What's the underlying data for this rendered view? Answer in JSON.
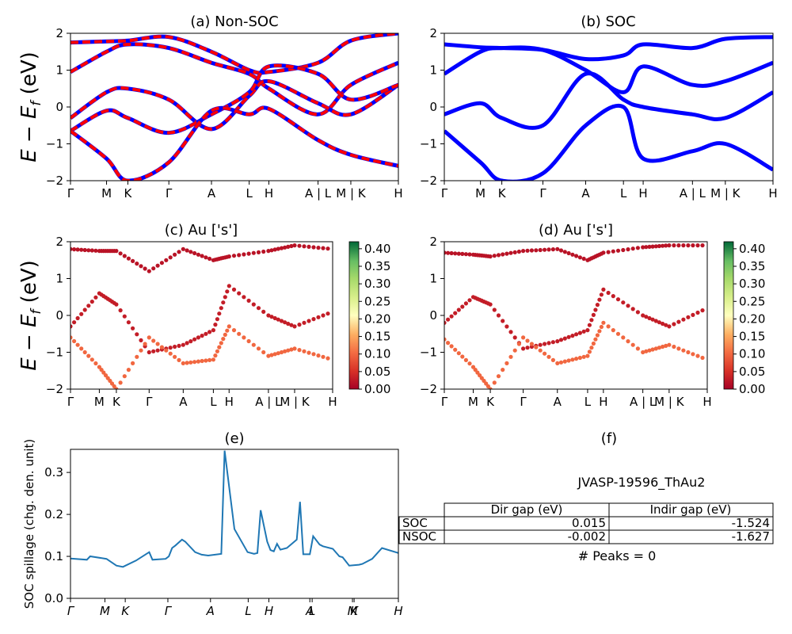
{
  "panels": {
    "a": {
      "title": "(a) Non-SOC",
      "ylabel": "E − E_f (eV)",
      "ylim": [
        -2,
        2
      ],
      "yticks": [
        "2",
        "1",
        "0",
        "−1",
        "−2"
      ],
      "kticks": [
        "Γ",
        "M",
        "K",
        "Γ",
        "A",
        "L",
        "H",
        "A | L",
        "M | K",
        "H"
      ],
      "colors": [
        "#0000ff",
        "#ff0000"
      ]
    },
    "b": {
      "title": "(b) SOC",
      "ylim": [
        -2,
        2
      ],
      "yticks": [
        "2",
        "1",
        "0",
        "−1",
        "−2"
      ],
      "kticks": [
        "Γ",
        "M",
        "K",
        "Γ",
        "A",
        "L",
        "H",
        "A | L",
        "M | K",
        "H"
      ],
      "color": "#0000ff"
    },
    "c": {
      "title": "(c)  Au ['s']",
      "ylabel": "E − E_f (eV)",
      "ylim": [
        -2,
        2
      ],
      "yticks": [
        "2",
        "1",
        "0",
        "−1",
        "−2"
      ],
      "kticks": [
        "Γ",
        "M",
        "K",
        "Γ",
        "A",
        "L",
        "H",
        "A | L",
        "M | K",
        "H"
      ],
      "colorbar_ticks": [
        "0.40",
        "0.35",
        "0.30",
        "0.25",
        "0.20",
        "0.15",
        "0.10",
        "0.05",
        "0.00"
      ]
    },
    "d": {
      "title": "(d) Au ['s']",
      "ylim": [
        -2,
        2
      ],
      "yticks": [
        "2",
        "1",
        "0",
        "−1",
        "−2"
      ],
      "kticks": [
        "Γ",
        "M",
        "K",
        "Γ",
        "A",
        "L",
        "H",
        "A | L",
        "M | K",
        "H"
      ],
      "colorbar_ticks": [
        "0.40",
        "0.35",
        "0.30",
        "0.25",
        "0.20",
        "0.15",
        "0.10",
        "0.05",
        "0.00"
      ]
    },
    "e": {
      "title": "(e)",
      "ylabel": "SOC spillage (chg. den. unit)",
      "yticks": [
        "0.3",
        "0.2",
        "0.1",
        "0.0"
      ],
      "kticks": [
        "Γ",
        "M",
        "K",
        "Γ",
        "A",
        "L",
        "H",
        "A",
        "L",
        "M",
        "K",
        "H"
      ]
    },
    "f": {
      "title": "(f)",
      "material": "JVASP-19596_ThAu2",
      "table": {
        "headers": [
          "",
          "Dir gap (eV)",
          "Indir gap (eV)"
        ],
        "rows": [
          [
            "SOC",
            "0.015",
            "-1.524"
          ],
          [
            "NSOC",
            "-0.002",
            "-1.627"
          ]
        ]
      },
      "peaks": "# Peaks = 0"
    }
  },
  "chart_data": [
    {
      "type": "line",
      "title": "(a) Non-SOC",
      "xlabel": "",
      "ylabel": "E − E_f (eV)",
      "ylim": [
        -2,
        2
      ],
      "x_ticks": [
        "Γ",
        "M",
        "K",
        "Γ",
        "A",
        "L",
        "H",
        "A | L",
        "M | K",
        "H"
      ],
      "series": [
        {
          "values": [
            1.75,
            1.78,
            1.8,
            1.9,
            1.5,
            1.0,
            0.95,
            1.2,
            1.8,
            2.0
          ]
        },
        {
          "values": [
            0.95,
            1.5,
            1.7,
            1.6,
            1.2,
            0.9,
            0.5,
            -0.2,
            0.6,
            1.2
          ]
        },
        {
          "values": [
            -0.3,
            0.4,
            0.5,
            0.2,
            -0.6,
            0.3,
            0.7,
            0.1,
            -0.2,
            0.6
          ]
        },
        {
          "values": [
            -0.65,
            -0.1,
            -0.3,
            -0.7,
            -0.2,
            0.4,
            1.1,
            0.9,
            0.2,
            0.6
          ]
        },
        {
          "values": [
            -0.65,
            -1.4,
            -2.0,
            -1.5,
            -0.1,
            -0.2,
            -0.05,
            -0.9,
            -1.3,
            -1.6
          ]
        }
      ]
    },
    {
      "type": "line",
      "title": "(b) SOC",
      "ylim": [
        -2,
        2
      ],
      "x_ticks": [
        "Γ",
        "M",
        "K",
        "Γ",
        "A",
        "L",
        "H",
        "A | L",
        "M | K",
        "H"
      ],
      "series": [
        {
          "values": [
            1.7,
            1.62,
            1.6,
            1.55,
            1.3,
            1.4,
            1.7,
            1.6,
            1.85,
            1.9
          ]
        },
        {
          "values": [
            0.9,
            1.5,
            1.6,
            1.55,
            1.0,
            0.4,
            1.1,
            0.6,
            0.7,
            1.2
          ]
        },
        {
          "values": [
            -0.2,
            0.1,
            -0.3,
            -0.5,
            0.9,
            0.2,
            0.0,
            -0.2,
            -0.3,
            0.4
          ]
        },
        {
          "values": [
            -0.65,
            -1.5,
            -2.0,
            -1.8,
            -0.5,
            0.0,
            -1.4,
            -1.2,
            -1.0,
            -1.7
          ]
        }
      ]
    },
    {
      "type": "scatter",
      "title": "(c)  Au ['s']",
      "ylim": [
        -2,
        2
      ],
      "colorbar_range": [
        0,
        0.42
      ],
      "x_ticks": [
        "Γ",
        "M",
        "K",
        "Γ",
        "A",
        "L",
        "H",
        "A | L",
        "M | K",
        "H"
      ],
      "series": [
        {
          "values": [
            1.8,
            1.75,
            1.75,
            1.2,
            1.8,
            1.5,
            1.6,
            1.75,
            1.9,
            1.8
          ],
          "weight": 0.02
        },
        {
          "values": [
            -0.3,
            0.6,
            0.3,
            -1.0,
            -0.8,
            -0.4,
            0.8,
            0.0,
            -0.3,
            0.1
          ],
          "weight": 0.03
        },
        {
          "values": [
            -0.6,
            -1.4,
            -2.0,
            -0.6,
            -1.3,
            -1.2,
            -0.3,
            -1.1,
            -0.9,
            -1.2
          ],
          "weight": 0.1
        }
      ]
    },
    {
      "type": "scatter",
      "title": "(d) Au ['s']",
      "ylim": [
        -2,
        2
      ],
      "colorbar_range": [
        0,
        0.42
      ],
      "x_ticks": [
        "Γ",
        "M",
        "K",
        "Γ",
        "A",
        "L",
        "H",
        "A | L",
        "M | K",
        "H"
      ],
      "series": [
        {
          "values": [
            1.7,
            1.65,
            1.6,
            1.75,
            1.8,
            1.5,
            1.7,
            1.85,
            1.9,
            1.9
          ],
          "weight": 0.02
        },
        {
          "values": [
            -0.2,
            0.5,
            0.3,
            -0.9,
            -0.7,
            -0.4,
            0.7,
            0.0,
            -0.3,
            0.2
          ],
          "weight": 0.03
        },
        {
          "values": [
            -0.65,
            -1.4,
            -2.0,
            -0.6,
            -1.3,
            -1.1,
            -0.2,
            -1.0,
            -0.8,
            -1.2
          ],
          "weight": 0.1
        }
      ]
    },
    {
      "type": "line",
      "title": "(e)",
      "ylabel": "SOC spillage (chg. den. unit)",
      "ylim": [
        0,
        0.355
      ],
      "x_ticks": [
        "Γ",
        "M",
        "K",
        "Γ",
        "A",
        "L",
        "H",
        "A",
        "L",
        "M",
        "K",
        "H"
      ],
      "x": [
        0,
        0.05,
        0.06,
        0.11,
        0.14,
        0.16,
        0.2,
        0.24,
        0.25,
        0.29,
        0.3,
        0.31,
        0.32,
        0.34,
        0.35,
        0.38,
        0.4,
        0.42,
        0.46,
        0.47,
        0.48,
        0.5,
        0.54,
        0.56,
        0.57,
        0.58,
        0.6,
        0.61,
        0.62,
        0.63,
        0.64,
        0.66,
        0.69,
        0.7,
        0.71,
        0.73,
        0.74,
        0.76,
        0.77,
        0.8,
        0.82,
        0.83,
        0.85,
        0.88,
        0.89,
        0.92,
        0.95,
        1.0
      ],
      "values": [
        0.095,
        0.092,
        0.1,
        0.094,
        0.078,
        0.075,
        0.09,
        0.11,
        0.092,
        0.094,
        0.1,
        0.12,
        0.126,
        0.14,
        0.135,
        0.11,
        0.104,
        0.102,
        0.106,
        0.352,
        0.29,
        0.165,
        0.11,
        0.106,
        0.108,
        0.21,
        0.135,
        0.115,
        0.112,
        0.13,
        0.116,
        0.12,
        0.14,
        0.23,
        0.105,
        0.105,
        0.148,
        0.128,
        0.124,
        0.118,
        0.1,
        0.098,
        0.078,
        0.08,
        0.082,
        0.094,
        0.12,
        0.108
      ]
    }
  ]
}
